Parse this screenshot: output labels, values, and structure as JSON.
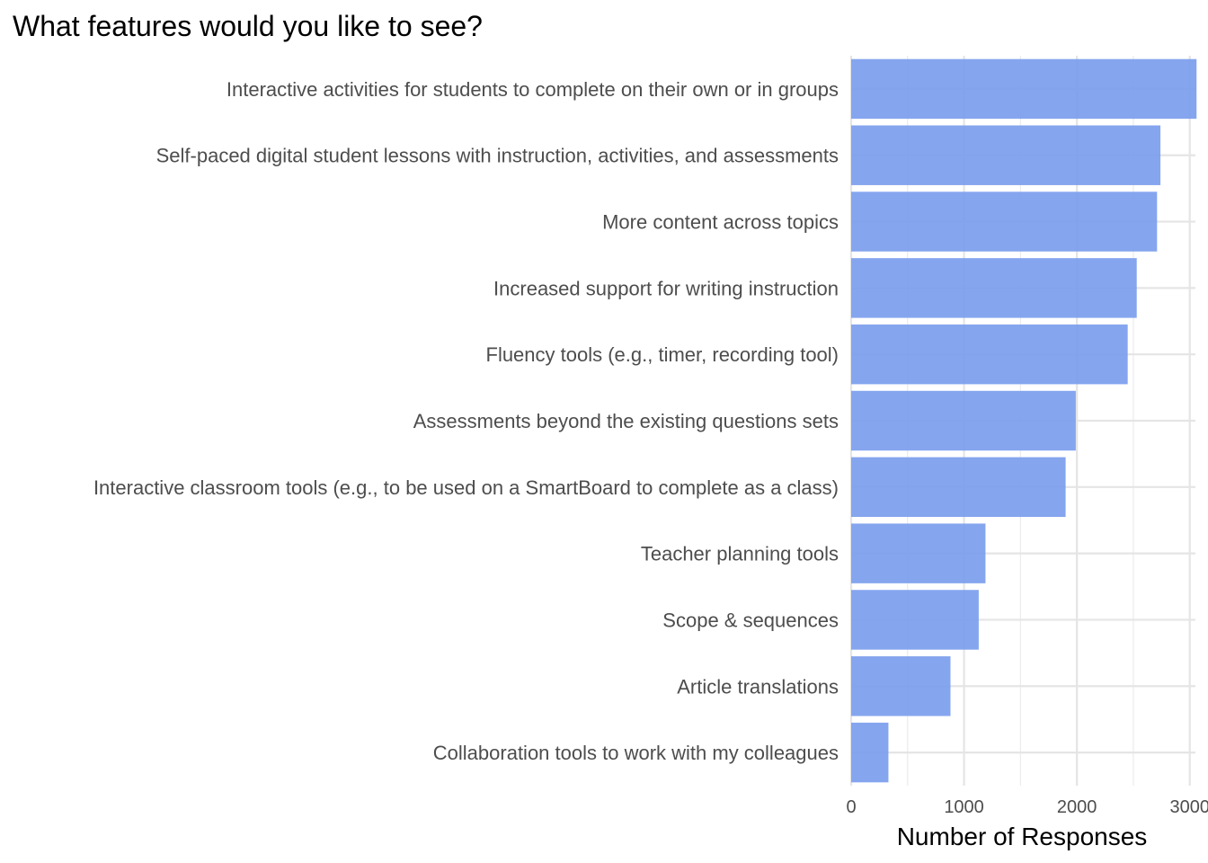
{
  "chart_data": {
    "type": "bar",
    "orientation": "horizontal",
    "title": "What features would you like to see?",
    "xlabel": "Number of Responses",
    "ylabel": "",
    "xlim": [
      0,
      3050
    ],
    "x_ticks": [
      0,
      1000,
      2000,
      3000
    ],
    "x_tick_labels": [
      "0",
      "1000",
      "2000",
      "3000"
    ],
    "grid": true,
    "bar_color": "#7b9ded",
    "categories": [
      "Interactive activities for students to complete on their own or in groups",
      "Self-paced digital student lessons with instruction, activities, and assessments",
      "More content across topics",
      "Increased support for writing instruction",
      "Fluency tools (e.g., timer, recording tool)",
      "Assessments beyond the existing questions sets",
      "Interactive classroom tools (e.g., to be used on a SmartBoard to complete as a class)",
      "Teacher planning tools",
      "Scope & sequences",
      "Article translations",
      "Collaboration tools to work with my colleagues"
    ],
    "values": [
      3060,
      2740,
      2710,
      2530,
      2450,
      1990,
      1900,
      1190,
      1130,
      880,
      330
    ]
  }
}
